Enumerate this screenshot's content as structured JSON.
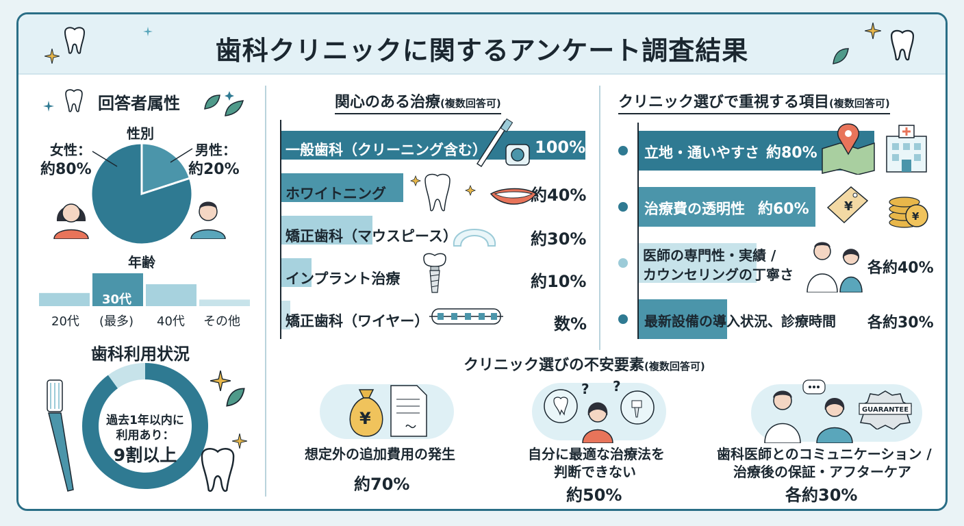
{
  "title": "歯科クリニックに関するアンケート調査結果",
  "colors": {
    "teal_dark": "#2f7a92",
    "teal_mid": "#4b95aa",
    "teal_light": "#a7d2de",
    "teal_pale": "#c7e3ea",
    "ink": "#1b2730"
  },
  "respondents": {
    "heading": "回答者属性",
    "gender": {
      "heading": "性別",
      "female_label": "女性：",
      "female_value": "約80%",
      "male_label": "男性：",
      "male_value": "約20%"
    },
    "age": {
      "heading": "年齢",
      "groups": [
        "20代",
        "(最多)",
        "40代",
        "その他"
      ],
      "peak_label": "30代"
    }
  },
  "usage": {
    "heading": "歯科利用状況",
    "center_line1": "過去1年以内に",
    "center_line2": "利用あり：",
    "center_value": "9割以上"
  },
  "interest": {
    "heading": "関心のある治療",
    "note": "(複数回答可)",
    "items": [
      {
        "label": "一般歯科（クリーニング含む）",
        "value": "100%"
      },
      {
        "label": "ホワイトニング",
        "value": "約40%"
      },
      {
        "label": "矯正歯科（マウスピース）",
        "value": "約30%"
      },
      {
        "label": "インプラント治療",
        "value": "約10%"
      },
      {
        "label": "矯正歯科（ワイヤー）",
        "value": "数%"
      }
    ]
  },
  "priorities": {
    "heading": "クリニック選びで重視する項目",
    "note": "(複数回答可)",
    "items": [
      {
        "label": "立地・通いやすさ",
        "value": "約80%"
      },
      {
        "label": "治療費の透明性",
        "value": "約60%"
      },
      {
        "label_line1": "医師の専門性・実績 /",
        "label_line2": "カウンセリングの丁寧さ",
        "value": "各約40%"
      },
      {
        "label": "最新設備の導入状況、診療時間",
        "value": "各約30%"
      }
    ]
  },
  "concerns": {
    "heading": "クリニック選びの不安要素",
    "note": "(複数回答可)",
    "items": [
      {
        "line1": "想定外の追加費用の発生",
        "line2": "",
        "value": "約70%"
      },
      {
        "line1": "自分に最適な治療法を",
        "line2": "判断できない",
        "value": "約50%"
      },
      {
        "line1": "歯科医師とのコミュニケーション /",
        "line2": "治療後の保証・アフターケア",
        "value": "各約30%"
      }
    ],
    "guarantee_text": "GUARANTEE"
  },
  "chart_data": [
    {
      "type": "pie",
      "title": "性別",
      "categories": [
        "女性",
        "男性"
      ],
      "values": [
        80,
        20
      ]
    },
    {
      "type": "bar",
      "title": "年齢",
      "categories": [
        "20代",
        "30代",
        "40代",
        "その他"
      ],
      "values": [
        12,
        30,
        20,
        6
      ]
    },
    {
      "type": "pie",
      "title": "歯科利用状況",
      "categories": [
        "過去1年以内に利用あり",
        "その他"
      ],
      "values": [
        90,
        10
      ]
    },
    {
      "type": "bar",
      "title": "関心のある治療",
      "categories": [
        "一般歯科（クリーニング含む）",
        "ホワイトニング",
        "矯正歯科（マウスピース）",
        "インプラント治療",
        "矯正歯科（ワイヤー）"
      ],
      "values": [
        100,
        40,
        30,
        10,
        3
      ]
    },
    {
      "type": "bar",
      "title": "クリニック選びで重視する項目",
      "categories": [
        "立地・通いやすさ",
        "治療費の透明性",
        "医師の専門性・実績 / カウンセリングの丁寧さ",
        "最新設備の導入状況、診療時間"
      ],
      "values": [
        80,
        60,
        40,
        30
      ]
    },
    {
      "type": "bar",
      "title": "クリニック選びの不安要素",
      "categories": [
        "想定外の追加費用の発生",
        "自分に最適な治療法を判断できない",
        "歯科医師とのコミュニケーション / 治療後の保証・アフターケア"
      ],
      "values": [
        70,
        50,
        30
      ]
    }
  ]
}
